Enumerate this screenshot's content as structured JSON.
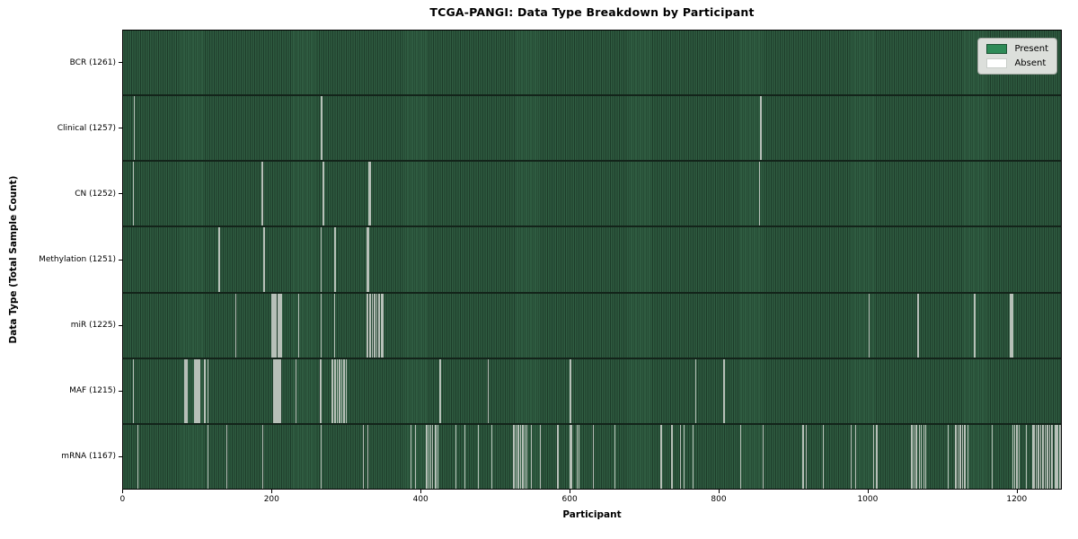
{
  "title": "TCGA-PANGI: Data Type Breakdown by Participant",
  "chart_data": {
    "type": "heatmap",
    "title": "TCGA-PANGI: Data Type Breakdown by Participant",
    "xlabel": "Participant",
    "ylabel": "Data Type (Total Sample Count)",
    "x_ticks": [
      0,
      200,
      400,
      600,
      800,
      1000,
      1200
    ],
    "x_range": [
      -0.5,
      1260.5
    ],
    "n_participants": 1261,
    "grid": false,
    "legend_position": "upper right",
    "legend": {
      "present_label": "Present",
      "absent_label": "Absent",
      "present_color": "#2e8b57",
      "absent_color": "#ffffff"
    },
    "colors": {
      "present_fill": "#2f5c41",
      "bar_edge": "#1d3b29",
      "absent_line": "#b7c0b8",
      "row_separator": "#13241a"
    },
    "rows": [
      {
        "label": "BCR",
        "total": 1261,
        "tick_label": "BCR (1261)",
        "absent_participants": []
      },
      {
        "label": "Clinical",
        "total": 1257,
        "tick_label": "Clinical (1257)",
        "absent_participants": [
          15,
          266,
          855,
          856
        ]
      },
      {
        "label": "CN",
        "total": 1252,
        "tick_label": "CN (1252)",
        "absent_participants": [
          13,
          186,
          187,
          268,
          269,
          329,
          330,
          331,
          854
        ]
      },
      {
        "label": "Methylation",
        "total": 1251,
        "tick_label": "Methylation (1251)",
        "absent_participants": [
          128,
          129,
          188,
          189,
          265,
          283,
          284,
          327,
          328,
          329
        ]
      },
      {
        "label": "miR",
        "total": 1225,
        "tick_label": "miR (1225)",
        "absent_participants": [
          151,
          199,
          200,
          201,
          202,
          204,
          205,
          207,
          208,
          210,
          211,
          212,
          235,
          265,
          283,
          327,
          328,
          330,
          332,
          334,
          336,
          338,
          340,
          343,
          346,
          348,
          1001,
          1066,
          1067,
          1142,
          1143,
          1190,
          1191,
          1192,
          1193,
          1194
        ]
      },
      {
        "label": "MAF",
        "total": 1215,
        "tick_label": "MAF (1215)",
        "absent_participants": [
          13,
          82,
          83,
          85,
          95,
          96,
          97,
          98,
          99,
          100,
          101,
          103,
          109,
          110,
          113,
          202,
          203,
          204,
          205,
          206,
          208,
          209,
          210,
          211,
          232,
          264,
          265,
          280,
          281,
          283,
          285,
          287,
          289,
          291,
          293,
          295,
          297,
          299,
          425,
          426,
          490,
          599,
          600,
          768,
          805,
          806
        ]
      },
      {
        "label": "mRNA",
        "total": 1167,
        "tick_label": "mRNA (1167)",
        "absent_participants": [
          19,
          113,
          139,
          187,
          265,
          322,
          328,
          386,
          392,
          406,
          408,
          410,
          412,
          415,
          418,
          420,
          422,
          446,
          458,
          476,
          494,
          523,
          524,
          525,
          527,
          529,
          531,
          533,
          535,
          537,
          539,
          541,
          547,
          559,
          583,
          599,
          601,
          609,
          611,
          631,
          660,
          721,
          722,
          736,
          748,
          752,
          764,
          828,
          858,
          912,
          916,
          939,
          977,
          983,
          1007,
          1011,
          1057,
          1059,
          1061,
          1063,
          1065,
          1068,
          1071,
          1074,
          1077,
          1107,
          1117,
          1120,
          1123,
          1126,
          1129,
          1133,
          1166,
          1194,
          1196,
          1198,
          1200,
          1202,
          1212,
          1220,
          1222,
          1225,
          1228,
          1231,
          1234,
          1237,
          1240,
          1243,
          1246,
          1250,
          1252,
          1254,
          1256,
          1258
        ]
      }
    ]
  }
}
